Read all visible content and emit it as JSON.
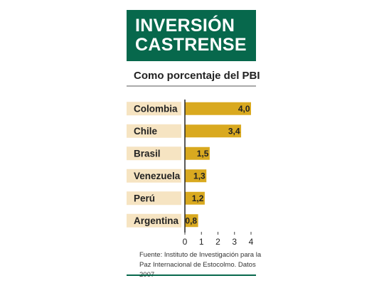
{
  "chart_data": {
    "type": "bar",
    "orientation": "horizontal",
    "title": "INVERSIÓN CASTRENSE",
    "subtitle": "Como porcentaje del PBI",
    "categories": [
      "Colombia",
      "Chile",
      "Brasil",
      "Venezuela",
      "Perú",
      "Argentina"
    ],
    "values": [
      4.0,
      3.4,
      1.5,
      1.3,
      1.2,
      0.8
    ],
    "value_labels": [
      "4,0",
      "3,4",
      "1,5",
      "1,3",
      "1,2",
      "0,8"
    ],
    "color": "#d9a91f",
    "xlim": [
      0,
      4
    ],
    "xticks": [
      0,
      1,
      2,
      3,
      4
    ],
    "source": "Fuente: Instituto de Investigación para la Paz Internacional de Estocolmo. Datos 2007"
  }
}
